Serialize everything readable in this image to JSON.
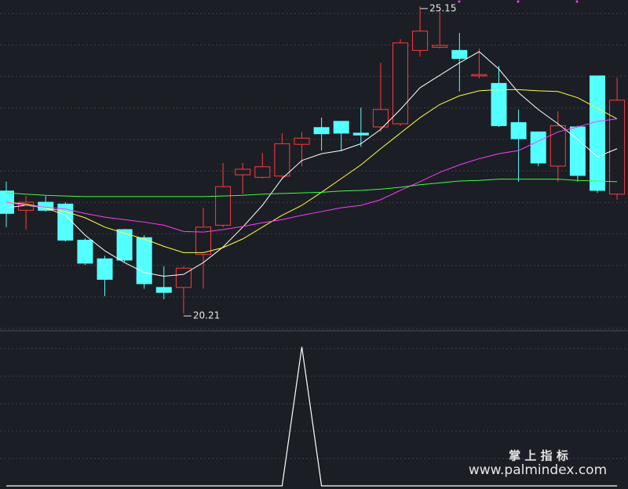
{
  "chart_data": {
    "type": "candlestick",
    "up_color": "#ff3b3b",
    "down_color": "#54ffff",
    "ylim": [
      19.96,
      25.25
    ],
    "open": [
      22.18,
      21.87,
      22.0,
      21.97,
      21.39,
      21.09,
      21.56,
      21.43,
      20.63,
      20.63,
      21.16,
      21.63,
      22.44,
      22.4,
      22.42,
      22.93,
      23.2,
      23.3,
      23.11,
      23.21,
      23.26,
      24.44,
      24.49,
      24.44,
      24.03,
      23.91,
      23.28,
      23.13,
      22.58,
      23.21,
      24.03,
      22.13
    ],
    "high": [
      22.33,
      22.1,
      22.1,
      22.0,
      21.42,
      21.14,
      21.57,
      21.47,
      20.97,
      20.97,
      21.91,
      22.63,
      22.63,
      22.79,
      23.11,
      23.13,
      23.36,
      23.3,
      23.52,
      24.24,
      24.62,
      25.15,
      25.07,
      24.72,
      24.47,
      24.19,
      23.49,
      23.13,
      23.46,
      23.23,
      24.03,
      24.0
    ],
    "low": [
      21.6,
      21.56,
      21.85,
      21.37,
      20.99,
      20.49,
      21.04,
      20.61,
      20.44,
      20.21,
      20.61,
      21.6,
      22.13,
      22.38,
      22.38,
      22.58,
      22.83,
      22.82,
      22.89,
      23.13,
      23.23,
      24.34,
      24.47,
      23.78,
      23.99,
      23.21,
      22.33,
      22.58,
      22.33,
      22.33,
      22.15,
      22.04
    ],
    "close": [
      21.82,
      22.0,
      21.87,
      21.39,
      21.02,
      20.76,
      21.07,
      20.69,
      20.55,
      20.94,
      21.6,
      22.25,
      22.53,
      22.57,
      22.94,
      23.03,
      23.1,
      23.11,
      23.08,
      23.49,
      24.56,
      24.75,
      24.52,
      24.31,
      24.05,
      23.23,
      23.02,
      22.63,
      23.23,
      22.43,
      22.19,
      23.64
    ],
    "ma_lines": [
      {
        "color": "#ffffff",
        "values": [
          21.91,
          21.95,
          21.91,
          21.79,
          21.47,
          21.22,
          21.03,
          20.87,
          20.81,
          20.84,
          21.03,
          21.28,
          21.6,
          21.95,
          22.38,
          22.67,
          22.78,
          22.83,
          22.94,
          23.17,
          23.49,
          23.84,
          24.04,
          24.24,
          24.42,
          24.14,
          23.76,
          23.49,
          23.26,
          23.01,
          22.73,
          22.86
        ]
      },
      {
        "color": "#ffff3c",
        "values": [
          22.0,
          21.97,
          21.91,
          21.85,
          21.75,
          21.6,
          21.5,
          21.41,
          21.29,
          21.19,
          21.19,
          21.27,
          21.41,
          21.6,
          21.79,
          21.95,
          22.16,
          22.38,
          22.6,
          22.86,
          23.11,
          23.36,
          23.57,
          23.71,
          23.79,
          23.81,
          23.81,
          23.79,
          23.78,
          23.68,
          23.51,
          23.34
        ]
      },
      {
        "color": "#ff3cff",
        "values": [
          22.0,
          21.95,
          21.92,
          21.89,
          21.82,
          21.76,
          21.72,
          21.68,
          21.63,
          21.53,
          21.52,
          21.56,
          21.61,
          21.67,
          21.72,
          21.79,
          21.85,
          21.91,
          21.95,
          22.04,
          22.19,
          22.33,
          22.48,
          22.6,
          22.7,
          22.78,
          22.83,
          22.98,
          23.13,
          23.21,
          23.3,
          23.34
        ]
      },
      {
        "color": "#3cff3c",
        "values": [
          22.15,
          22.13,
          22.11,
          22.1,
          22.09,
          22.09,
          22.09,
          22.09,
          22.09,
          22.09,
          22.09,
          22.1,
          22.11,
          22.13,
          22.14,
          22.15,
          22.16,
          22.18,
          22.19,
          22.21,
          22.24,
          22.28,
          22.31,
          22.34,
          22.35,
          22.37,
          22.37,
          22.37,
          22.37,
          22.35,
          22.34,
          22.33
        ]
      }
    ],
    "high_mark": 25.15,
    "low_mark": 20.21,
    "indicator": {
      "color": "#ffffff",
      "ylim": [
        0,
        1.11
      ],
      "values": [
        0,
        0,
        0,
        0,
        0,
        0,
        0,
        0,
        0,
        0,
        0,
        0,
        0,
        0,
        0,
        1,
        0,
        0,
        0,
        0,
        0,
        0,
        0,
        0,
        0,
        0,
        0,
        0,
        0,
        0,
        0,
        0
      ]
    }
  },
  "watermark": {
    "title": "掌 上 指 标",
    "url": "www.palmindex.com"
  }
}
